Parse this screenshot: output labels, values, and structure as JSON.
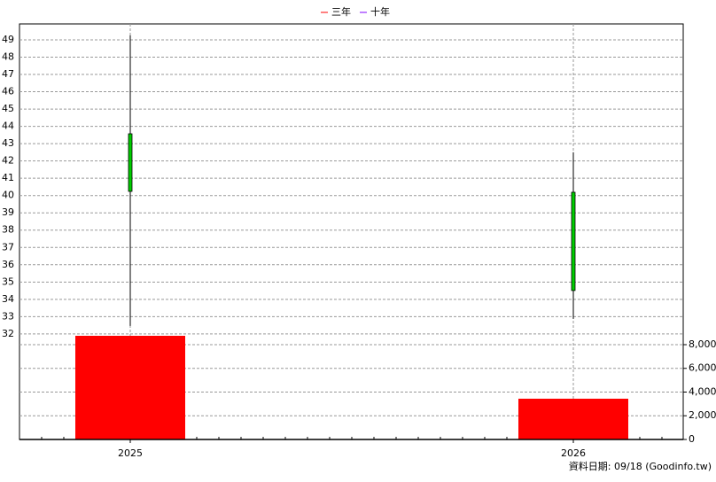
{
  "chart_data": {
    "type": "candlestick",
    "categories": [
      "2025",
      "2026"
    ],
    "series": [
      {
        "name": "三年",
        "color": "#ff0000",
        "values": [
          null,
          null
        ]
      },
      {
        "name": "十年",
        "color": "#8000ff",
        "values": [
          null,
          null
        ]
      }
    ],
    "open": [
      43.57,
      40.19
    ],
    "high": [
      49.26,
      42.5
    ],
    "low": [
      32.46,
      32.87
    ],
    "close": [
      40.24,
      34.51
    ],
    "candle_color": "#00cc00",
    "volume": {
      "values": [
        8748,
        3439
      ],
      "color": "#ff0000",
      "axis": "y2"
    },
    "ylim": [
      25.9,
      49.92
    ],
    "yticks": [
      32,
      33,
      34,
      35,
      36,
      37,
      38,
      39,
      40,
      41,
      42,
      43,
      44,
      45,
      46,
      47,
      48,
      49
    ],
    "y2lim": [
      0,
      35065
    ],
    "y2ticks": [
      0,
      {
        "value": 2000,
        "label": "2,000"
      },
      {
        "value": 4000,
        "label": "4,000"
      },
      {
        "value": 6000,
        "label": "6,000"
      },
      {
        "value": 8000,
        "label": "8,000"
      }
    ],
    "grid": true,
    "footer": "資料日期: 09/18  (Goodinfo.tw)"
  }
}
